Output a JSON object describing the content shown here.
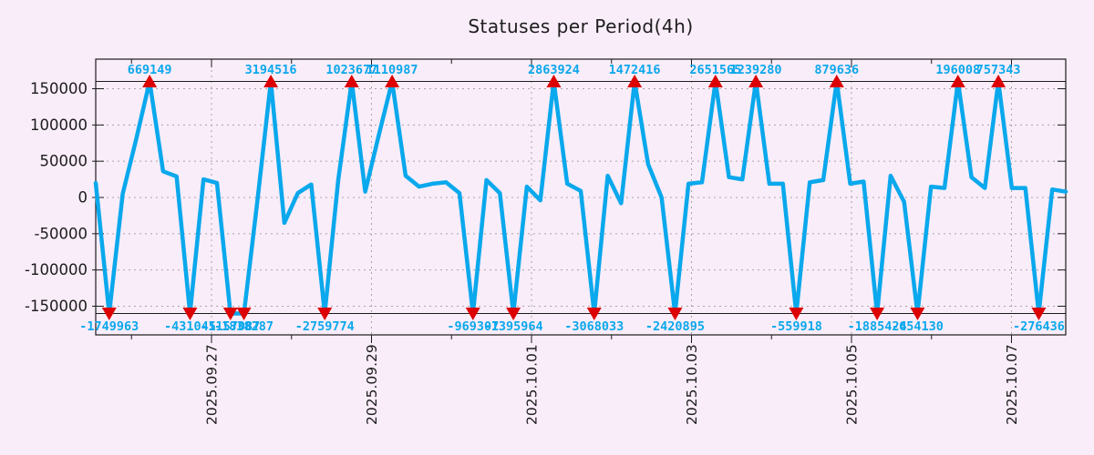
{
  "title": "Statuses per Period(4h)",
  "chart_data": {
    "type": "line",
    "title": "Statuses per Period(4h)",
    "period": "4h",
    "legend": "none",
    "grid": true,
    "clip_value": 160000,
    "ylim": [
      -190000,
      190000
    ],
    "y_tick_values": [
      150000,
      100000,
      50000,
      0,
      -50000,
      -100000,
      -150000
    ],
    "y_tick_labels": [
      "150000",
      "100000",
      "50000",
      "0",
      "-50000",
      "-100000",
      "-150000"
    ],
    "x_tick_labels": [
      "2025.09.27",
      "2025.09.29",
      "2025.10.01",
      "2025.10.03",
      "2025.10.05",
      "2025.10.07"
    ],
    "series": [
      {
        "name": "statuses",
        "values": [
          20000,
          -1749963,
          5000,
          80000,
          669149,
          36000,
          29000,
          -431045,
          25000,
          20000,
          -1157087,
          -1838287,
          -5000,
          3194516,
          -35000,
          6000,
          18000,
          -2759774,
          24000,
          1023677,
          8000,
          85000,
          1110987,
          30000,
          15000,
          19000,
          21000,
          6000,
          -969307,
          24000,
          6000,
          -1395964,
          15000,
          -4000,
          2863924,
          19000,
          9000,
          -3068033,
          30000,
          -8000,
          1472416,
          46000,
          0,
          -2420895,
          19000,
          21000,
          2651565,
          28000,
          25000,
          1239280,
          19000,
          19000,
          -559918,
          21000,
          24000,
          879636,
          19000,
          22000,
          -1885424,
          30000,
          -6000,
          -654130,
          15000,
          13000,
          196008,
          28000,
          13000,
          757343,
          13000,
          13000,
          -276436,
          11000,
          8000
        ]
      }
    ],
    "annotations": {
      "maxima": [
        {
          "index": 4,
          "label": "669149"
        },
        {
          "index": 13,
          "label": "3194516"
        },
        {
          "index": 19,
          "label": "1023677"
        },
        {
          "index": 22,
          "label": "1110987"
        },
        {
          "index": 34,
          "label": "2863924"
        },
        {
          "index": 40,
          "label": "1472416"
        },
        {
          "index": 46,
          "label": "2651565"
        },
        {
          "index": 49,
          "label": "1239280"
        },
        {
          "index": 55,
          "label": "879636"
        },
        {
          "index": 64,
          "label": "196008"
        },
        {
          "index": 67,
          "label": "757343"
        }
      ],
      "minima": [
        {
          "index": 1,
          "label": "-1749963"
        },
        {
          "index": 7,
          "label": "-431045"
        },
        {
          "index": 10,
          "label": "-1157087"
        },
        {
          "index": 11,
          "label": "-1838287"
        },
        {
          "index": 17,
          "label": "-2759774"
        },
        {
          "index": 28,
          "label": "-969307"
        },
        {
          "index": 31,
          "label": "-1395964"
        },
        {
          "index": 37,
          "label": "-3068033"
        },
        {
          "index": 43,
          "label": "-2420895"
        },
        {
          "index": 52,
          "label": "-559918"
        },
        {
          "index": 58,
          "label": "-1885424"
        },
        {
          "index": 61,
          "label": "-654130"
        },
        {
          "index": 70,
          "label": "-276436"
        }
      ]
    },
    "colors": {
      "background": "#f9edf9",
      "line": "#0aa8ec",
      "value_label": "#0aa8ec",
      "marker": "#dd0000",
      "grid": "#a6a6a6",
      "axis": "#1c1c1c"
    }
  }
}
